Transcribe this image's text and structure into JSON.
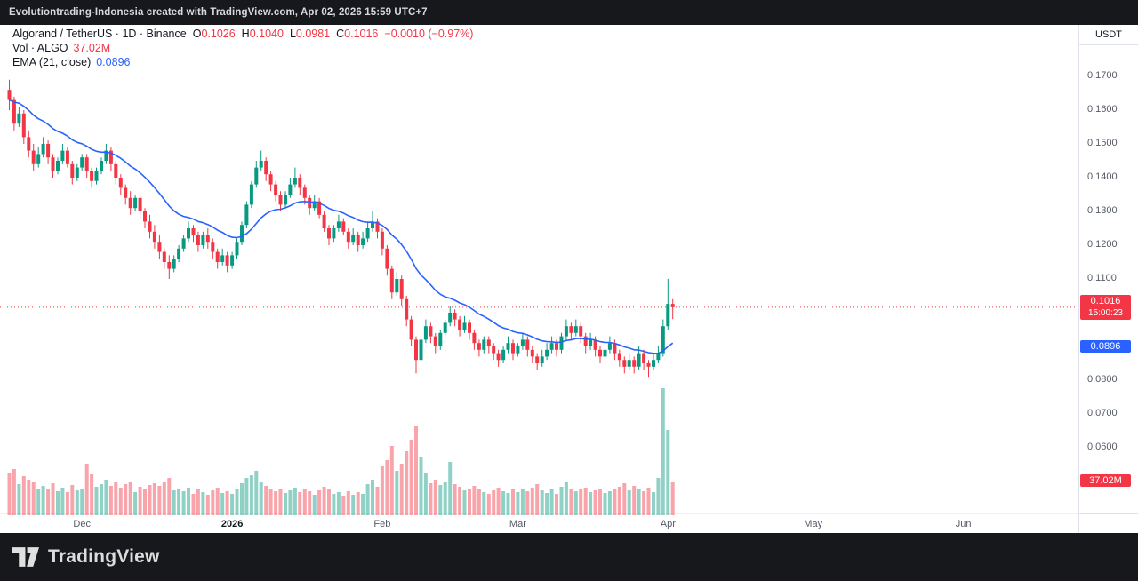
{
  "topbar": {
    "caption": "Evolutiontrading-Indonesia created with TradingView.com, Apr 02, 2026 15:59 UTC+7"
  },
  "legend": {
    "title": "Algorand / TetherUS · 1D · Binance",
    "ohlc": {
      "o_label": "O",
      "o": "0.1026",
      "h_label": "H",
      "h": "0.1040",
      "l_label": "L",
      "l": "0.0981",
      "c_label": "C",
      "c": "0.1016",
      "change": "−0.0010 (−0.97%)"
    },
    "volume_row": {
      "label": "Vol · ALGO",
      "value": "37.02M"
    },
    "ema_row": {
      "label": "EMA (21, close)",
      "value": "0.0896"
    }
  },
  "axis": {
    "currency": "USDT",
    "labels": [
      {
        "text": "0.1700",
        "price": 0.17
      },
      {
        "text": "0.1600",
        "price": 0.16
      },
      {
        "text": "0.1500",
        "price": 0.15
      },
      {
        "text": "0.1400",
        "price": 0.14
      },
      {
        "text": "0.1300",
        "price": 0.13
      },
      {
        "text": "0.1200",
        "price": 0.12
      },
      {
        "text": "0.1100",
        "price": 0.11
      },
      {
        "text": "0.0800",
        "price": 0.08
      },
      {
        "text": "0.0700",
        "price": 0.07
      },
      {
        "text": "0.0600",
        "price": 0.06
      }
    ],
    "price_badge": {
      "price": "0.1016",
      "countdown": "15:00:23",
      "color": "#f23645"
    },
    "ema_badge": {
      "value": "0.0896",
      "color": "#2962ff"
    },
    "volume_badge": {
      "value": "37.02M",
      "color": "#f23645"
    }
  },
  "time_axis": {
    "labels": [
      {
        "label": "Dec",
        "day": 15,
        "bold": false
      },
      {
        "label": "2026",
        "day": 46,
        "bold": true
      },
      {
        "label": "Feb",
        "day": 77,
        "bold": false
      },
      {
        "label": "Mar",
        "day": 105,
        "bold": false
      },
      {
        "label": "Apr",
        "day": 136,
        "bold": false
      },
      {
        "label": "May",
        "day": 166,
        "bold": false
      },
      {
        "label": "Jun",
        "day": 197,
        "bold": false
      }
    ]
  },
  "footer": {
    "brand": "TradingView"
  },
  "colors": {
    "up": "#089981",
    "down": "#f23645",
    "vol_up": "rgba(8,153,129,0.45)",
    "vol_down": "rgba(242,54,69,0.45)",
    "ema": "#2962ff",
    "grid_border": "#e0e3eb"
  },
  "chart_data": {
    "type": "candlestick",
    "title": "Algorand / TetherUS · 1D · Binance",
    "currency": "USDT",
    "price_ticks": [
      0.17,
      0.16,
      0.15,
      0.14,
      0.13,
      0.12,
      0.11,
      0.1,
      0.09,
      0.08,
      0.07,
      0.06
    ],
    "time_ticks": [
      "Dec",
      "2026",
      "Feb",
      "Mar",
      "Apr",
      "May",
      "Jun"
    ],
    "ema_period": 21,
    "ema_last": 0.0896,
    "last_candle": {
      "open": 0.1026,
      "high": 0.104,
      "low": 0.0981,
      "close": 0.1016,
      "volume_millions": 37.02,
      "change": -0.001,
      "change_pct": -0.97
    },
    "columns": [
      "open",
      "high",
      "low",
      "close",
      "volume_millions"
    ],
    "ohlcv": [
      [
        0.166,
        0.169,
        0.16,
        0.163,
        48
      ],
      [
        0.163,
        0.164,
        0.154,
        0.156,
        52
      ],
      [
        0.156,
        0.161,
        0.155,
        0.159,
        35
      ],
      [
        0.159,
        0.16,
        0.15,
        0.152,
        44
      ],
      [
        0.152,
        0.154,
        0.146,
        0.148,
        40
      ],
      [
        0.148,
        0.15,
        0.142,
        0.144,
        38
      ],
      [
        0.144,
        0.149,
        0.143,
        0.147,
        30
      ],
      [
        0.147,
        0.152,
        0.146,
        0.15,
        33
      ],
      [
        0.15,
        0.151,
        0.144,
        0.146,
        29
      ],
      [
        0.146,
        0.147,
        0.14,
        0.142,
        36
      ],
      [
        0.142,
        0.146,
        0.141,
        0.145,
        27
      ],
      [
        0.145,
        0.15,
        0.144,
        0.148,
        31
      ],
      [
        0.148,
        0.149,
        0.143,
        0.144,
        26
      ],
      [
        0.144,
        0.145,
        0.138,
        0.14,
        34
      ],
      [
        0.14,
        0.144,
        0.139,
        0.143,
        28
      ],
      [
        0.143,
        0.147,
        0.142,
        0.146,
        30
      ],
      [
        0.146,
        0.147,
        0.14,
        0.142,
        58
      ],
      [
        0.142,
        0.143,
        0.137,
        0.139,
        46
      ],
      [
        0.139,
        0.143,
        0.138,
        0.142,
        32
      ],
      [
        0.142,
        0.146,
        0.141,
        0.145,
        35
      ],
      [
        0.145,
        0.15,
        0.144,
        0.148,
        40
      ],
      [
        0.148,
        0.149,
        0.142,
        0.144,
        33
      ],
      [
        0.144,
        0.145,
        0.138,
        0.14,
        37
      ],
      [
        0.14,
        0.141,
        0.135,
        0.137,
        31
      ],
      [
        0.137,
        0.138,
        0.132,
        0.134,
        35
      ],
      [
        0.134,
        0.136,
        0.129,
        0.131,
        38
      ],
      [
        0.131,
        0.135,
        0.13,
        0.134,
        26
      ],
      [
        0.134,
        0.135,
        0.128,
        0.13,
        32
      ],
      [
        0.13,
        0.131,
        0.125,
        0.127,
        30
      ],
      [
        0.127,
        0.129,
        0.122,
        0.124,
        34
      ],
      [
        0.124,
        0.126,
        0.119,
        0.121,
        36
      ],
      [
        0.121,
        0.123,
        0.116,
        0.118,
        33
      ],
      [
        0.118,
        0.119,
        0.113,
        0.115,
        38
      ],
      [
        0.115,
        0.117,
        0.11,
        0.113,
        42
      ],
      [
        0.113,
        0.117,
        0.112,
        0.116,
        28
      ],
      [
        0.116,
        0.12,
        0.115,
        0.119,
        30
      ],
      [
        0.119,
        0.123,
        0.118,
        0.122,
        27
      ],
      [
        0.122,
        0.127,
        0.121,
        0.125,
        31
      ],
      [
        0.125,
        0.126,
        0.121,
        0.123,
        24
      ],
      [
        0.123,
        0.124,
        0.118,
        0.12,
        29
      ],
      [
        0.12,
        0.124,
        0.119,
        0.123,
        26
      ],
      [
        0.123,
        0.125,
        0.119,
        0.121,
        23
      ],
      [
        0.121,
        0.122,
        0.116,
        0.118,
        28
      ],
      [
        0.118,
        0.119,
        0.113,
        0.115,
        31
      ],
      [
        0.115,
        0.119,
        0.114,
        0.117,
        25
      ],
      [
        0.117,
        0.118,
        0.112,
        0.114,
        27
      ],
      [
        0.114,
        0.118,
        0.113,
        0.117,
        24
      ],
      [
        0.117,
        0.122,
        0.116,
        0.121,
        30
      ],
      [
        0.121,
        0.127,
        0.12,
        0.126,
        36
      ],
      [
        0.126,
        0.133,
        0.125,
        0.132,
        42
      ],
      [
        0.132,
        0.139,
        0.131,
        0.138,
        45
      ],
      [
        0.138,
        0.145,
        0.137,
        0.143,
        50
      ],
      [
        0.143,
        0.148,
        0.142,
        0.145,
        38
      ],
      [
        0.145,
        0.146,
        0.139,
        0.141,
        33
      ],
      [
        0.141,
        0.142,
        0.136,
        0.138,
        29
      ],
      [
        0.138,
        0.139,
        0.133,
        0.135,
        27
      ],
      [
        0.135,
        0.136,
        0.13,
        0.132,
        30
      ],
      [
        0.132,
        0.136,
        0.131,
        0.135,
        25
      ],
      [
        0.135,
        0.14,
        0.134,
        0.138,
        28
      ],
      [
        0.138,
        0.143,
        0.137,
        0.14,
        31
      ],
      [
        0.14,
        0.141,
        0.135,
        0.137,
        26
      ],
      [
        0.137,
        0.138,
        0.132,
        0.134,
        29
      ],
      [
        0.134,
        0.135,
        0.129,
        0.131,
        27
      ],
      [
        0.131,
        0.135,
        0.13,
        0.133,
        23
      ],
      [
        0.133,
        0.134,
        0.128,
        0.129,
        28
      ],
      [
        0.129,
        0.13,
        0.124,
        0.125,
        32
      ],
      [
        0.125,
        0.126,
        0.12,
        0.122,
        30
      ],
      [
        0.122,
        0.126,
        0.121,
        0.125,
        24
      ],
      [
        0.125,
        0.129,
        0.124,
        0.127,
        26
      ],
      [
        0.127,
        0.128,
        0.123,
        0.124,
        22
      ],
      [
        0.124,
        0.125,
        0.119,
        0.121,
        27
      ],
      [
        0.121,
        0.125,
        0.12,
        0.123,
        23
      ],
      [
        0.123,
        0.124,
        0.118,
        0.12,
        26
      ],
      [
        0.12,
        0.124,
        0.119,
        0.122,
        24
      ],
      [
        0.122,
        0.127,
        0.121,
        0.125,
        35
      ],
      [
        0.125,
        0.13,
        0.124,
        0.127,
        40
      ],
      [
        0.127,
        0.128,
        0.122,
        0.124,
        32
      ],
      [
        0.124,
        0.125,
        0.117,
        0.119,
        55
      ],
      [
        0.119,
        0.12,
        0.111,
        0.113,
        62
      ],
      [
        0.113,
        0.114,
        0.104,
        0.106,
        78
      ],
      [
        0.106,
        0.112,
        0.105,
        0.11,
        50
      ],
      [
        0.11,
        0.111,
        0.102,
        0.104,
        58
      ],
      [
        0.104,
        0.105,
        0.096,
        0.098,
        72
      ],
      [
        0.098,
        0.099,
        0.09,
        0.092,
        85
      ],
      [
        0.092,
        0.093,
        0.082,
        0.086,
        100
      ],
      [
        0.086,
        0.093,
        0.085,
        0.092,
        66
      ],
      [
        0.092,
        0.098,
        0.091,
        0.096,
        48
      ],
      [
        0.096,
        0.097,
        0.091,
        0.093,
        36
      ],
      [
        0.093,
        0.094,
        0.088,
        0.09,
        40
      ],
      [
        0.09,
        0.095,
        0.089,
        0.094,
        34
      ],
      [
        0.094,
        0.098,
        0.093,
        0.097,
        38
      ],
      [
        0.097,
        0.102,
        0.096,
        0.1,
        60
      ],
      [
        0.1,
        0.101,
        0.096,
        0.098,
        35
      ],
      [
        0.098,
        0.099,
        0.093,
        0.095,
        32
      ],
      [
        0.095,
        0.099,
        0.094,
        0.097,
        28
      ],
      [
        0.097,
        0.098,
        0.092,
        0.094,
        30
      ],
      [
        0.094,
        0.095,
        0.089,
        0.091,
        33
      ],
      [
        0.091,
        0.092,
        0.087,
        0.089,
        29
      ],
      [
        0.089,
        0.093,
        0.088,
        0.092,
        26
      ],
      [
        0.092,
        0.093,
        0.088,
        0.09,
        24
      ],
      [
        0.09,
        0.091,
        0.086,
        0.088,
        28
      ],
      [
        0.088,
        0.089,
        0.084,
        0.086,
        31
      ],
      [
        0.086,
        0.09,
        0.085,
        0.089,
        27
      ],
      [
        0.089,
        0.093,
        0.088,
        0.091,
        25
      ],
      [
        0.091,
        0.092,
        0.086,
        0.088,
        29
      ],
      [
        0.088,
        0.091,
        0.087,
        0.09,
        26
      ],
      [
        0.09,
        0.094,
        0.089,
        0.092,
        30
      ],
      [
        0.092,
        0.093,
        0.087,
        0.089,
        27
      ],
      [
        0.089,
        0.09,
        0.085,
        0.087,
        31
      ],
      [
        0.087,
        0.088,
        0.083,
        0.085,
        35
      ],
      [
        0.085,
        0.089,
        0.084,
        0.087,
        28
      ],
      [
        0.087,
        0.091,
        0.086,
        0.089,
        25
      ],
      [
        0.089,
        0.093,
        0.088,
        0.091,
        29
      ],
      [
        0.091,
        0.092,
        0.087,
        0.089,
        24
      ],
      [
        0.089,
        0.094,
        0.088,
        0.093,
        32
      ],
      [
        0.093,
        0.098,
        0.092,
        0.096,
        38
      ],
      [
        0.096,
        0.097,
        0.092,
        0.094,
        30
      ],
      [
        0.094,
        0.098,
        0.093,
        0.096,
        27
      ],
      [
        0.096,
        0.097,
        0.091,
        0.093,
        29
      ],
      [
        0.093,
        0.094,
        0.088,
        0.09,
        31
      ],
      [
        0.09,
        0.094,
        0.089,
        0.092,
        26
      ],
      [
        0.092,
        0.093,
        0.087,
        0.089,
        28
      ],
      [
        0.089,
        0.09,
        0.085,
        0.087,
        30
      ],
      [
        0.087,
        0.091,
        0.086,
        0.089,
        25
      ],
      [
        0.089,
        0.093,
        0.088,
        0.091,
        27
      ],
      [
        0.091,
        0.092,
        0.086,
        0.088,
        29
      ],
      [
        0.088,
        0.089,
        0.084,
        0.086,
        32
      ],
      [
        0.086,
        0.087,
        0.082,
        0.084,
        36
      ],
      [
        0.084,
        0.088,
        0.083,
        0.086,
        28
      ],
      [
        0.086,
        0.087,
        0.082,
        0.084,
        33
      ],
      [
        0.084,
        0.09,
        0.083,
        0.088,
        30
      ],
      [
        0.088,
        0.089,
        0.083,
        0.085,
        27
      ],
      [
        0.085,
        0.086,
        0.081,
        0.084,
        31
      ],
      [
        0.084,
        0.088,
        0.083,
        0.086,
        26
      ],
      [
        0.086,
        0.09,
        0.085,
        0.088,
        42
      ],
      [
        0.088,
        0.098,
        0.087,
        0.096,
        143
      ],
      [
        0.096,
        0.11,
        0.095,
        0.1026,
        96
      ],
      [
        0.1026,
        0.104,
        0.0981,
        0.1016,
        37.02
      ]
    ]
  }
}
